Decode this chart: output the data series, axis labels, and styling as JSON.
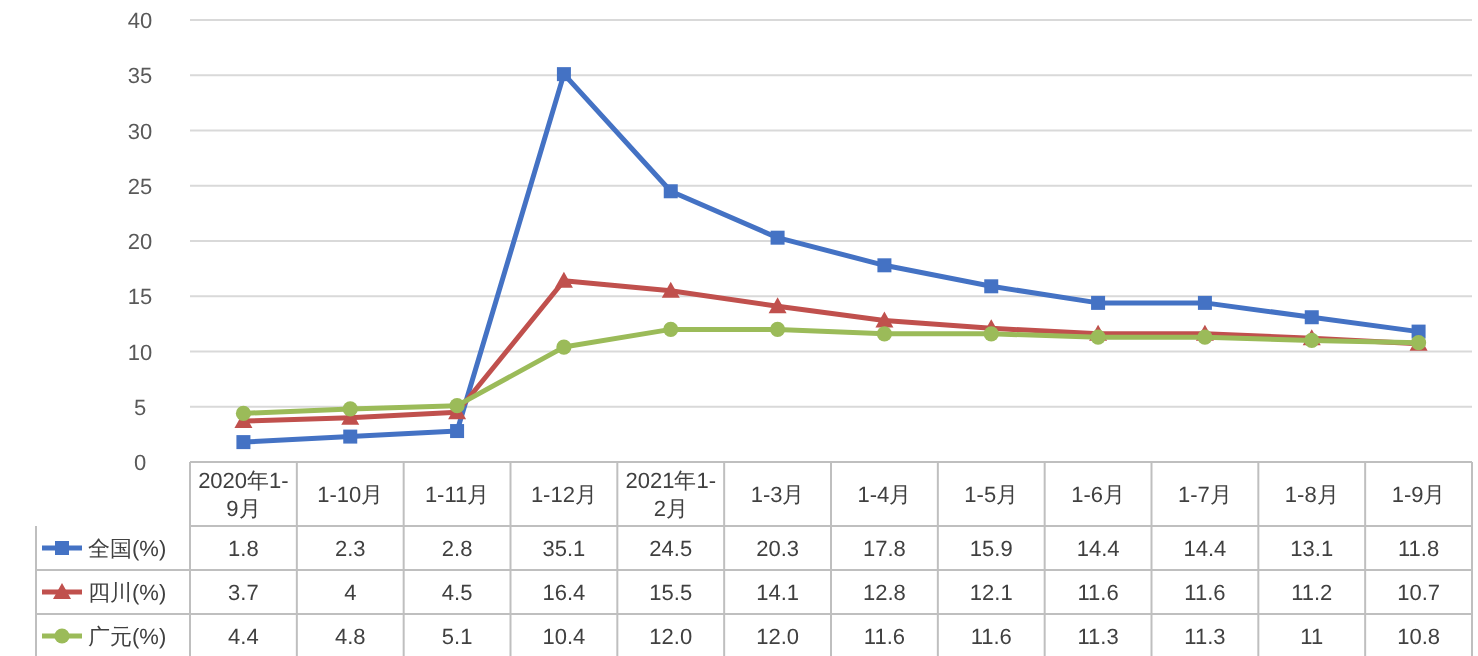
{
  "chart_data": {
    "type": "line",
    "categories": [
      "2020年1-9月",
      "1-10月",
      "1-11月",
      "1-12月",
      "2021年1-2月",
      "1-3月",
      "1-4月",
      "1-5月",
      "1-6月",
      "1-7月",
      "1-8月",
      "1-9月"
    ],
    "series": [
      {
        "name": "全国(%)",
        "color": "#4472c4",
        "marker": "square",
        "values": [
          1.8,
          2.3,
          2.8,
          35.1,
          24.5,
          20.3,
          17.8,
          15.9,
          14.4,
          14.4,
          13.1,
          11.8
        ],
        "value_labels": [
          "1.8",
          "2.3",
          "2.8",
          "35.1",
          "24.5",
          "20.3",
          "17.8",
          "15.9",
          "14.4",
          "14.4",
          "13.1",
          "11.8"
        ]
      },
      {
        "name": "四川(%)",
        "color": "#c0504d",
        "marker": "triangle",
        "values": [
          3.7,
          4,
          4.5,
          16.4,
          15.5,
          14.1,
          12.8,
          12.1,
          11.6,
          11.6,
          11.2,
          10.7
        ],
        "value_labels": [
          "3.7",
          "4",
          "4.5",
          "16.4",
          "15.5",
          "14.1",
          "12.8",
          "12.1",
          "11.6",
          "11.6",
          "11.2",
          "10.7"
        ]
      },
      {
        "name": "广元(%)",
        "color": "#9bbb59",
        "marker": "circle",
        "values": [
          4.4,
          4.8,
          5.1,
          10.4,
          12.0,
          12.0,
          11.6,
          11.6,
          11.3,
          11.3,
          11,
          10.8
        ],
        "value_labels": [
          "4.4",
          "4.8",
          "5.1",
          "10.4",
          "12.0",
          "12.0",
          "11.6",
          "11.6",
          "11.3",
          "11.3",
          "11",
          "10.8"
        ]
      }
    ],
    "ylim": [
      0,
      40
    ],
    "yticks": [
      0,
      5,
      10,
      15,
      20,
      25,
      30,
      35,
      40
    ],
    "grid": "y",
    "legend": "bottom",
    "line_style": "solid"
  }
}
